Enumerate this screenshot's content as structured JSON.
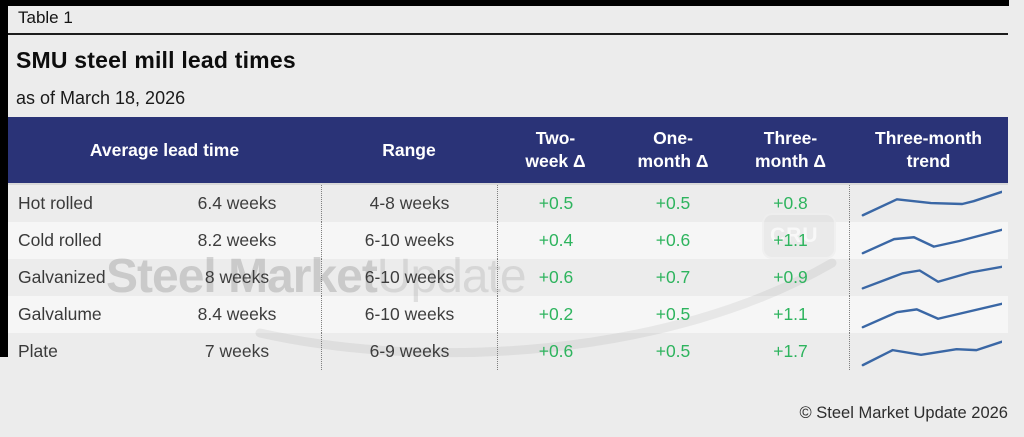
{
  "page": {
    "table_label": "Table 1",
    "title": "SMU steel mill lead times",
    "subtitle": "as of March 18, 2026",
    "footer": "© Steel Market Update 2026"
  },
  "colors": {
    "header_bg": "#2a3377",
    "delta_green": "#2eb45e",
    "spark_blue": "#3a67a5",
    "frame_black": "#000000"
  },
  "table_headers": {
    "average": "Average lead time",
    "range": "Range",
    "two_week": "Two-\nweek Δ",
    "one_month": "One-\nmonth Δ",
    "three_month": "Three-\nmonth Δ",
    "trend": "Three-month\ntrend"
  },
  "watermark": {
    "part_bold": "Steel Market",
    "part_light": "Update",
    "cru": "CRU"
  },
  "chart_data": {
    "type": "table",
    "title": "SMU steel mill lead times",
    "subtitle": "as of March 18, 2026",
    "columns": [
      "Average lead time",
      "Range",
      "Two-week Δ",
      "One-month Δ",
      "Three-month Δ",
      "Three-month trend"
    ],
    "rows": [
      {
        "product": "Hot rolled",
        "average_label": "6.4 weeks",
        "average_weeks": 6.4,
        "range": "4-8 weeks",
        "range_weeks": [
          4,
          8
        ],
        "two_week_label": "+0.5",
        "two_week_delta": 0.5,
        "one_month_label": "+0.5",
        "one_month_delta": 0.5,
        "three_month_label": "+0.8",
        "three_month_delta": 0.8,
        "trend_direction": "up",
        "trend": [
          [
            2,
            28
          ],
          [
            26,
            11
          ],
          [
            50,
            15
          ],
          [
            72,
            16
          ],
          [
            80,
            13
          ],
          [
            100,
            3
          ]
        ]
      },
      {
        "product": "Cold rolled",
        "average_label": "8.2 weeks",
        "average_weeks": 8.2,
        "range": "6-10 weeks",
        "range_weeks": [
          6,
          10
        ],
        "two_week_label": "+0.4",
        "two_week_delta": 0.4,
        "one_month_label": "+0.6",
        "one_month_delta": 0.6,
        "three_month_label": "+1.1",
        "three_month_delta": 1.1,
        "trend_direction": "up",
        "trend": [
          [
            2,
            29
          ],
          [
            24,
            14
          ],
          [
            38,
            12
          ],
          [
            52,
            22
          ],
          [
            70,
            16
          ],
          [
            100,
            4
          ]
        ]
      },
      {
        "product": "Galvanized",
        "average_label": "8 weeks",
        "average_weeks": 8,
        "range": "6-10 weeks",
        "range_weeks": [
          6,
          10
        ],
        "two_week_label": "+0.6",
        "two_week_delta": 0.6,
        "one_month_label": "+0.7",
        "one_month_delta": 0.7,
        "three_month_label": "+0.9",
        "three_month_delta": 0.9,
        "trend_direction": "up",
        "trend": [
          [
            2,
            27
          ],
          [
            30,
            11
          ],
          [
            42,
            8
          ],
          [
            55,
            20
          ],
          [
            78,
            10
          ],
          [
            100,
            4
          ]
        ]
      },
      {
        "product": "Galvalume",
        "average_label": "8.4 weeks",
        "average_weeks": 8.4,
        "range": "6-10 weeks",
        "range_weeks": [
          6,
          10
        ],
        "two_week_label": "+0.2",
        "two_week_delta": 0.2,
        "one_month_label": "+0.5",
        "one_month_delta": 0.5,
        "three_month_label": "+1.1",
        "three_month_delta": 1.1,
        "trend_direction": "up",
        "trend": [
          [
            2,
            29
          ],
          [
            26,
            13
          ],
          [
            40,
            10
          ],
          [
            55,
            20
          ],
          [
            100,
            4
          ]
        ]
      },
      {
        "product": "Plate",
        "average_label": "7 weeks",
        "average_weeks": 7,
        "range": "6-9 weeks",
        "range_weeks": [
          6,
          9
        ],
        "two_week_label": "+0.6",
        "two_week_delta": 0.6,
        "one_month_label": "+0.5",
        "one_month_delta": 0.5,
        "three_month_label": "+1.7",
        "three_month_delta": 1.7,
        "trend_direction": "up",
        "trend": [
          [
            2,
            30
          ],
          [
            23,
            14
          ],
          [
            43,
            19
          ],
          [
            68,
            13
          ],
          [
            82,
            14
          ],
          [
            100,
            5
          ]
        ]
      }
    ]
  }
}
